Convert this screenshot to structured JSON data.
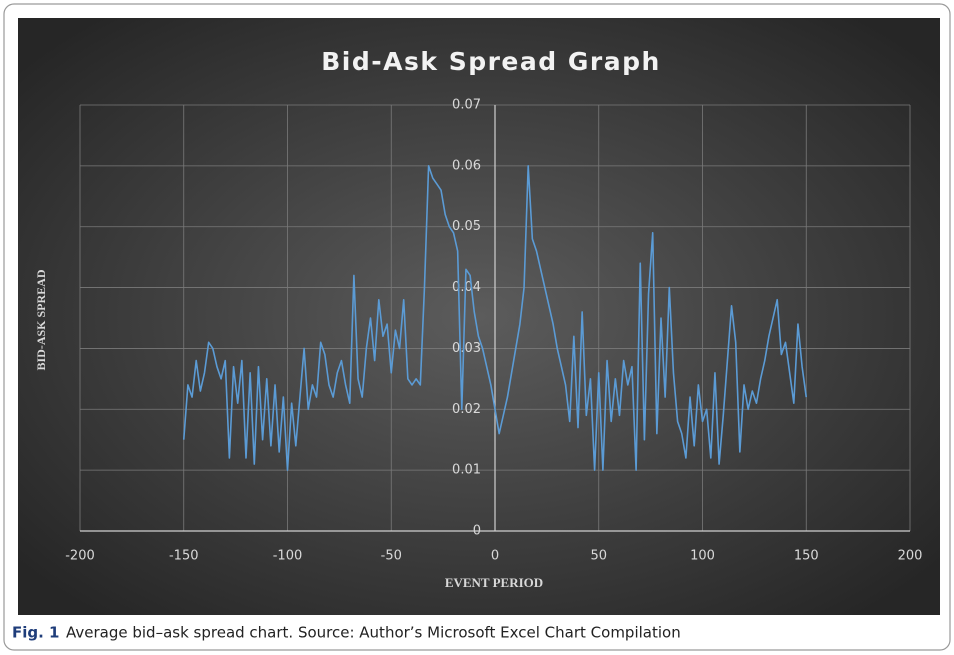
{
  "chart_data": {
    "type": "line",
    "title": "Bid-Ask Spread Graph",
    "xlabel": "EVENT PERIOD",
    "ylabel": "BID-ASK SPREAD",
    "caption_label": "Fig. 1",
    "caption": "Average bid–ask spread chart. Source: Author’s Microsoft Excel Chart Compilation",
    "xlim": [
      -200,
      200
    ],
    "xticks": [
      -200,
      -150,
      -100,
      -50,
      0,
      50,
      100,
      150,
      200
    ],
    "ylim": [
      0,
      0.07
    ],
    "yticks": [
      0,
      0.01,
      0.02,
      0.03,
      0.04,
      0.05,
      0.06,
      0.07
    ],
    "grid": true,
    "x": [
      -150,
      -148,
      -146,
      -144,
      -142,
      -140,
      -138,
      -136,
      -134,
      -132,
      -130,
      -128,
      -126,
      -124,
      -122,
      -120,
      -118,
      -116,
      -114,
      -112,
      -110,
      -108,
      -106,
      -104,
      -102,
      -100,
      -98,
      -96,
      -94,
      -92,
      -90,
      -88,
      -86,
      -84,
      -82,
      -80,
      -78,
      -76,
      -74,
      -72,
      -70,
      -68,
      -66,
      -64,
      -62,
      -60,
      -58,
      -56,
      -54,
      -52,
      -50,
      -48,
      -46,
      -44,
      -42,
      -40,
      -38,
      -36,
      -34,
      -32,
      -30,
      -28,
      -26,
      -24,
      -22,
      -20,
      -18,
      -16,
      -14,
      -12,
      -10,
      -8,
      -6,
      -4,
      -2,
      0,
      2,
      4,
      6,
      8,
      10,
      12,
      14,
      16,
      18,
      20,
      22,
      24,
      26,
      28,
      30,
      32,
      34,
      36,
      38,
      40,
      42,
      44,
      46,
      48,
      50,
      52,
      54,
      56,
      58,
      60,
      62,
      64,
      66,
      68,
      70,
      72,
      74,
      76,
      78,
      80,
      82,
      84,
      86,
      88,
      90,
      92,
      94,
      96,
      98,
      100,
      102,
      104,
      106,
      108,
      110,
      112,
      114,
      116,
      118,
      120,
      122,
      124,
      126,
      128,
      130,
      132,
      134,
      136,
      138,
      140,
      142,
      144,
      146,
      148,
      150
    ],
    "series": [
      {
        "name": "Bid-ask spread",
        "color": "#5b9bd5",
        "values": [
          0.015,
          0.024,
          0.022,
          0.028,
          0.023,
          0.026,
          0.031,
          0.03,
          0.027,
          0.025,
          0.028,
          0.012,
          0.027,
          0.021,
          0.028,
          0.012,
          0.026,
          0.011,
          0.027,
          0.015,
          0.025,
          0.014,
          0.024,
          0.013,
          0.022,
          0.01,
          0.021,
          0.014,
          0.022,
          0.03,
          0.02,
          0.024,
          0.022,
          0.031,
          0.029,
          0.024,
          0.022,
          0.026,
          0.028,
          0.024,
          0.021,
          0.042,
          0.025,
          0.022,
          0.03,
          0.035,
          0.028,
          0.038,
          0.032,
          0.034,
          0.026,
          0.033,
          0.03,
          0.038,
          0.025,
          0.024,
          0.025,
          0.024,
          0.04,
          0.06,
          0.058,
          0.057,
          0.056,
          0.052,
          0.05,
          0.049,
          0.046,
          0.02,
          0.043,
          0.042,
          0.036,
          0.032,
          0.03,
          0.027,
          0.024,
          0.02,
          0.016,
          0.019,
          0.022,
          0.026,
          0.03,
          0.034,
          0.04,
          0.06,
          0.048,
          0.046,
          0.043,
          0.04,
          0.037,
          0.034,
          0.03,
          0.027,
          0.024,
          0.018,
          0.032,
          0.017,
          0.036,
          0.019,
          0.025,
          0.01,
          0.026,
          0.01,
          0.028,
          0.018,
          0.025,
          0.019,
          0.028,
          0.024,
          0.027,
          0.01,
          0.044,
          0.015,
          0.039,
          0.049,
          0.016,
          0.035,
          0.022,
          0.04,
          0.026,
          0.018,
          0.016,
          0.012,
          0.022,
          0.014,
          0.024,
          0.018,
          0.02,
          0.012,
          0.026,
          0.011,
          0.019,
          0.028,
          0.037,
          0.031,
          0.013,
          0.024,
          0.02,
          0.023,
          0.021,
          0.025,
          0.028,
          0.032,
          0.035,
          0.038,
          0.029,
          0.031,
          0.026,
          0.021,
          0.034,
          0.027,
          0.022
        ]
      }
    ]
  }
}
